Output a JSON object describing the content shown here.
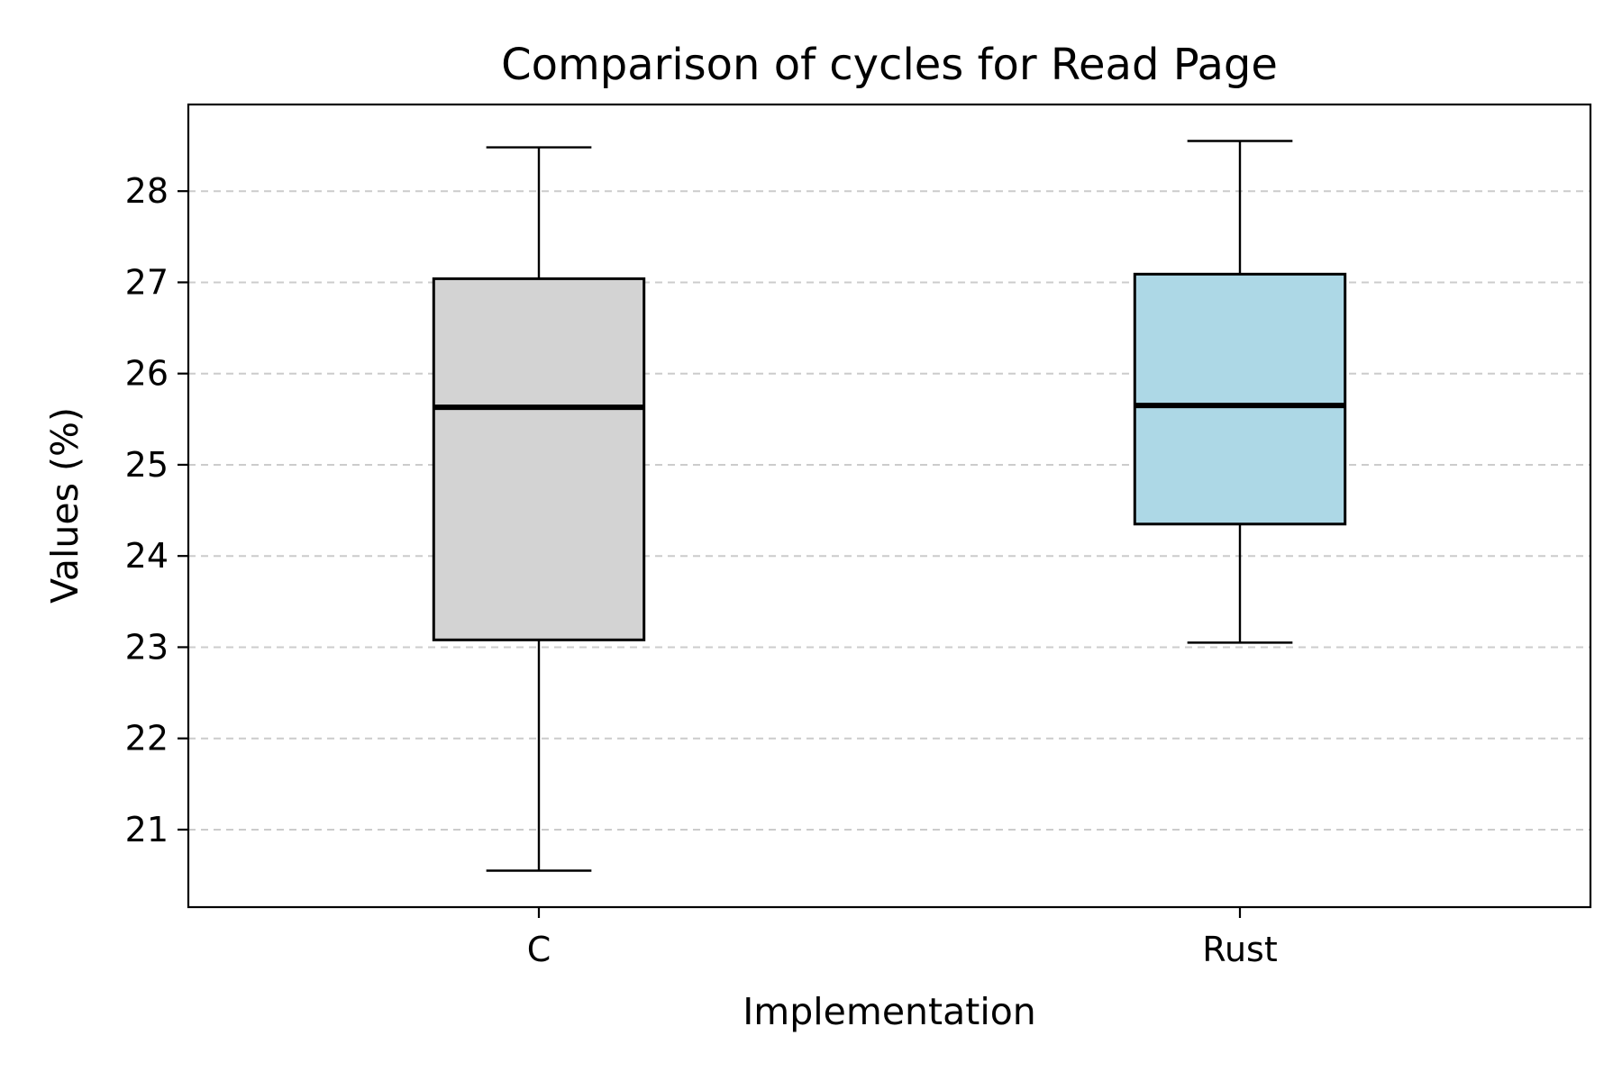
{
  "chart_data": {
    "type": "box",
    "title": "Comparison of cycles for Read Page",
    "xlabel": "Implementation",
    "ylabel": "Values (%)",
    "categories": [
      "C",
      "Rust"
    ],
    "ylim": [
      20.15,
      28.95
    ],
    "yticks": [
      21,
      22,
      23,
      24,
      25,
      26,
      27,
      28
    ],
    "grid": "y-dashed",
    "boxes": [
      {
        "name": "C",
        "whisker_low": 20.55,
        "q1": 23.08,
        "median": 25.63,
        "q3": 27.04,
        "whisker_high": 28.48,
        "color": "#d3d3d3"
      },
      {
        "name": "Rust",
        "whisker_low": 23.05,
        "q1": 24.35,
        "median": 25.65,
        "q3": 27.09,
        "whisker_high": 28.55,
        "color": "#add8e6"
      }
    ]
  }
}
